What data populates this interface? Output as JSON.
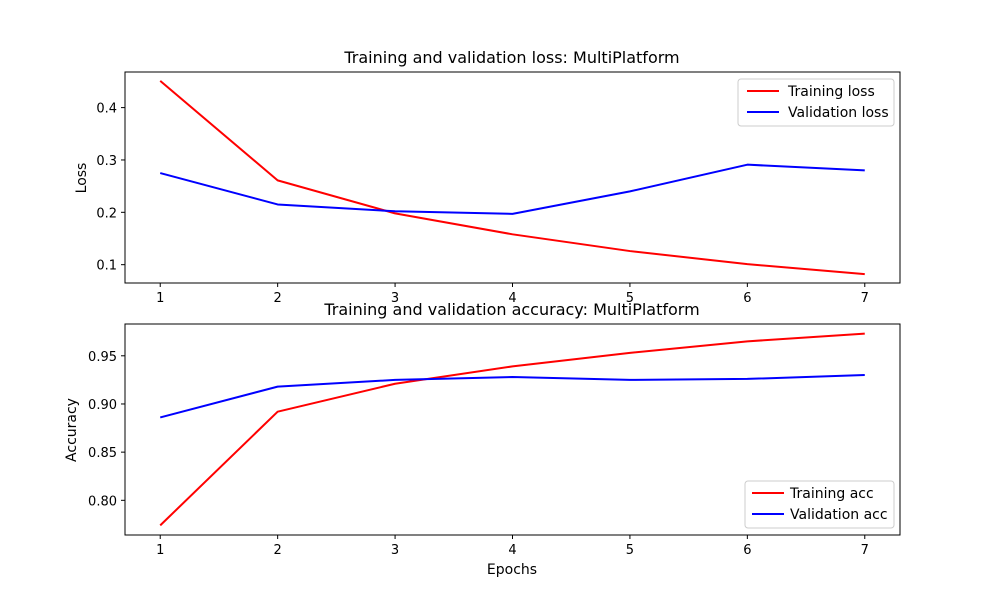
{
  "chart_data": [
    {
      "type": "line",
      "title": "Training and validation loss: MultiPlatform",
      "xlabel": "",
      "ylabel": "Loss",
      "x": [
        1,
        2,
        3,
        4,
        5,
        6,
        7
      ],
      "xlim": [
        0.7,
        7.3
      ],
      "ylim": [
        0.065,
        0.468
      ],
      "xticks": [
        1,
        2,
        3,
        4,
        5,
        6,
        7
      ],
      "yticks": [
        0.1,
        0.2,
        0.3,
        0.4
      ],
      "ytick_labels": [
        "0.1",
        "0.2",
        "0.3",
        "0.4"
      ],
      "grid": false,
      "legend_position": "upper right",
      "series": [
        {
          "name": "Training loss",
          "color": "#ff0000",
          "values": [
            0.451,
            0.261,
            0.198,
            0.158,
            0.126,
            0.101,
            0.082
          ]
        },
        {
          "name": "Validation loss",
          "color": "#0000ff",
          "values": [
            0.275,
            0.215,
            0.202,
            0.197,
            0.24,
            0.291,
            0.28
          ]
        }
      ]
    },
    {
      "type": "line",
      "title": "Training and validation accuracy: MultiPlatform",
      "xlabel": "Epochs",
      "ylabel": "Accuracy",
      "x": [
        1,
        2,
        3,
        4,
        5,
        6,
        7
      ],
      "xlim": [
        0.7,
        7.3
      ],
      "ylim": [
        0.764,
        0.983
      ],
      "xticks": [
        1,
        2,
        3,
        4,
        5,
        6,
        7
      ],
      "yticks": [
        0.8,
        0.85,
        0.9,
        0.95
      ],
      "ytick_labels": [
        "0.80",
        "0.85",
        "0.90",
        "0.95"
      ],
      "grid": false,
      "legend_position": "lower right",
      "series": [
        {
          "name": "Training acc",
          "color": "#ff0000",
          "values": [
            0.774,
            0.892,
            0.921,
            0.939,
            0.953,
            0.965,
            0.973
          ]
        },
        {
          "name": "Validation acc",
          "color": "#0000ff",
          "values": [
            0.886,
            0.918,
            0.925,
            0.928,
            0.925,
            0.926,
            0.93
          ]
        }
      ]
    }
  ]
}
